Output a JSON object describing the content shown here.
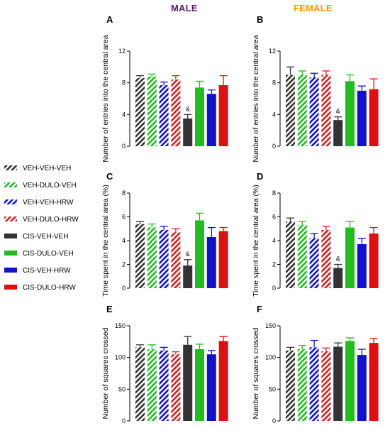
{
  "header": {
    "male": "MALE",
    "female": "FEMALE",
    "male_color": "#5b1770",
    "female_color": "#ff9900"
  },
  "legend": [
    {
      "label": "VEH-VEH-VEH",
      "color": "#333333",
      "hatched": true
    },
    {
      "label": "VEH-DULO-VEH",
      "color": "#22bb22",
      "hatched": true
    },
    {
      "label": "VEH-VEH-HRW",
      "color": "#1111cc",
      "hatched": true
    },
    {
      "label": "VEH-DULO-HRW",
      "color": "#cc2222",
      "hatched": true
    },
    {
      "label": "CIS-VEH-VEH",
      "color": "#333333",
      "hatched": false
    },
    {
      "label": "CIS-DULO-VEH",
      "color": "#22bb22",
      "hatched": false
    },
    {
      "label": "CIS-VEH-HRW",
      "color": "#1111cc",
      "hatched": false
    },
    {
      "label": "CIS-DULO-HRW",
      "color": "#dd1111",
      "hatched": false
    }
  ],
  "chart_data": [
    {
      "panel": "A",
      "type": "bar",
      "ylabel": "Number of entries into the central area",
      "ylim": [
        0,
        12
      ],
      "yticks": [
        0,
        4,
        8,
        12
      ],
      "categories": [
        "VEH-VEH-VEH",
        "VEH-DULO-VEH",
        "VEH-VEH-HRW",
        "VEH-DULO-HRW",
        "CIS-VEH-VEH",
        "CIS-DULO-VEH",
        "CIS-VEH-HRW",
        "CIS-DULO-HRW"
      ],
      "values": [
        8.6,
        8.8,
        7.7,
        8.4,
        3.5,
        7.4,
        6.6,
        7.7
      ],
      "errors": [
        0.3,
        0.3,
        0.4,
        0.5,
        0.5,
        0.8,
        0.5,
        1.2
      ],
      "annotations": [
        {
          "index": 4,
          "text": "&"
        }
      ]
    },
    {
      "panel": "B",
      "type": "bar",
      "ylabel": "Number of entries into the central area",
      "ylim": [
        0,
        12
      ],
      "yticks": [
        0,
        4,
        8,
        12
      ],
      "categories": [
        "VEH-VEH-VEH",
        "VEH-DULO-VEH",
        "VEH-VEH-HRW",
        "VEH-DULO-HRW",
        "CIS-VEH-VEH",
        "CIS-DULO-VEH",
        "CIS-VEH-HRW",
        "CIS-DULO-HRW"
      ],
      "values": [
        9.0,
        9.0,
        8.7,
        9.0,
        3.3,
        8.2,
        7.0,
        7.2
      ],
      "errors": [
        1.0,
        0.5,
        0.5,
        0.5,
        0.4,
        0.8,
        0.6,
        1.3
      ],
      "annotations": [
        {
          "index": 4,
          "text": "&"
        }
      ]
    },
    {
      "panel": "C",
      "type": "bar",
      "ylabel": "Time spent in the central area (%)",
      "ylim": [
        0,
        8
      ],
      "yticks": [
        0,
        2,
        4,
        6,
        8
      ],
      "categories": [
        "VEH-VEH-VEH",
        "VEH-DULO-VEH",
        "VEH-VEH-HRW",
        "VEH-DULO-HRW",
        "CIS-VEH-VEH",
        "CIS-DULO-VEH",
        "CIS-VEH-HRW",
        "CIS-DULO-HRW"
      ],
      "values": [
        5.4,
        5.1,
        4.9,
        4.7,
        1.9,
        5.7,
        4.3,
        4.8
      ],
      "errors": [
        0.2,
        0.3,
        0.3,
        0.3,
        0.5,
        0.6,
        0.8,
        0.3
      ],
      "annotations": [
        {
          "index": 4,
          "text": "&"
        }
      ]
    },
    {
      "panel": "D",
      "type": "bar",
      "ylabel": "Time spent in the central area (%)",
      "ylim": [
        0,
        8
      ],
      "yticks": [
        0,
        2,
        4,
        6,
        8
      ],
      "categories": [
        "VEH-VEH-VEH",
        "VEH-DULO-VEH",
        "VEH-VEH-HRW",
        "VEH-DULO-HRW",
        "CIS-VEH-VEH",
        "CIS-DULO-VEH",
        "CIS-VEH-HRW",
        "CIS-DULO-HRW"
      ],
      "values": [
        5.6,
        5.3,
        4.2,
        4.9,
        1.7,
        5.1,
        3.7,
        4.6
      ],
      "errors": [
        0.3,
        0.3,
        0.4,
        0.3,
        0.3,
        0.5,
        0.5,
        0.5
      ],
      "annotations": [
        {
          "index": 4,
          "text": "&"
        }
      ]
    },
    {
      "panel": "E",
      "type": "bar",
      "ylabel": "Number of squares crossed",
      "ylim": [
        0,
        150
      ],
      "yticks": [
        0,
        50,
        100,
        150
      ],
      "categories": [
        "VEH-VEH-VEH",
        "VEH-DULO-VEH",
        "VEH-VEH-HRW",
        "VEH-DULO-HRW",
        "CIS-VEH-VEH",
        "CIS-DULO-VEH",
        "CIS-VEH-HRW",
        "CIS-DULO-HRW"
      ],
      "values": [
        116,
        113,
        111,
        105,
        120,
        113,
        105,
        126
      ],
      "errors": [
        4,
        7,
        5,
        4,
        13,
        8,
        6,
        7
      ],
      "annotations": []
    },
    {
      "panel": "F",
      "type": "bar",
      "ylabel": "Number of squares crossed",
      "ylim": [
        0,
        150
      ],
      "yticks": [
        0,
        50,
        100,
        150
      ],
      "categories": [
        "VEH-VEH-VEH",
        "VEH-DULO-VEH",
        "VEH-VEH-HRW",
        "VEH-DULO-HRW",
        "CIS-VEH-VEH",
        "CIS-DULO-VEH",
        "CIS-VEH-HRW",
        "CIS-DULO-HRW"
      ],
      "values": [
        111,
        113,
        116,
        110,
        117,
        126,
        104,
        123
      ],
      "errors": [
        5,
        6,
        11,
        5,
        6,
        5,
        9,
        7
      ],
      "annotations": []
    }
  ]
}
